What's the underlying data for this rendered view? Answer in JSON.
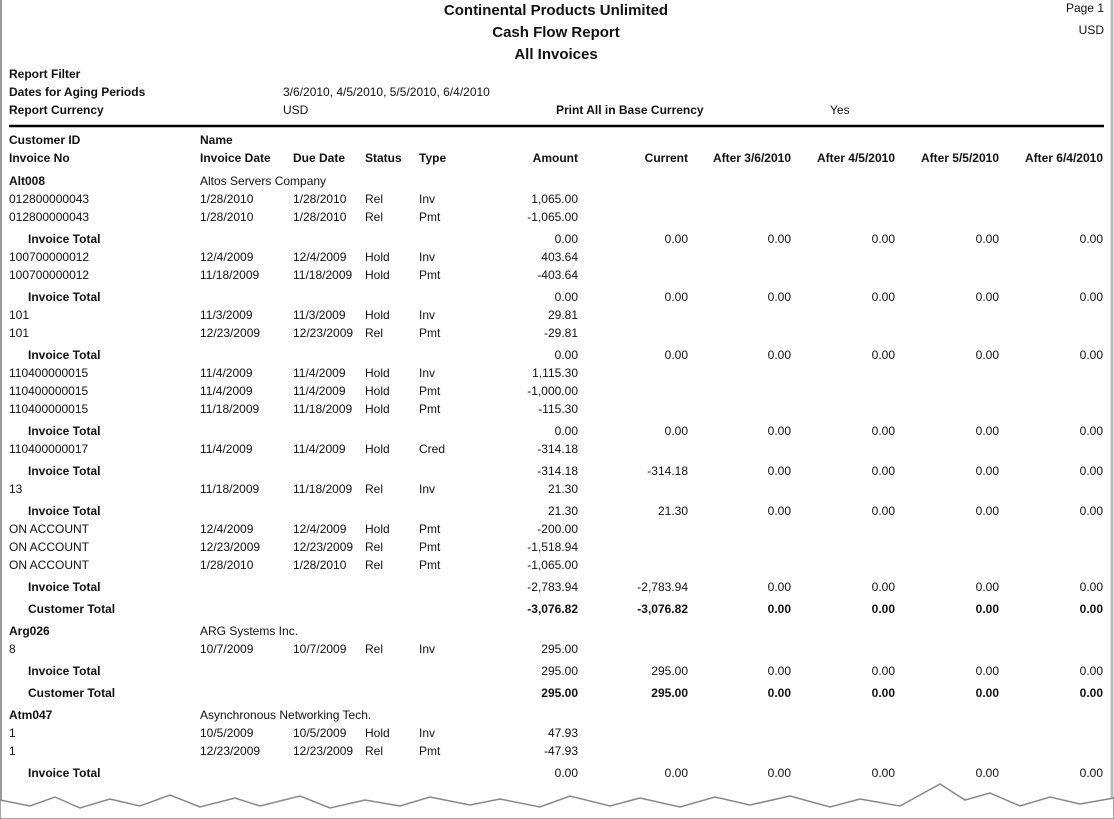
{
  "header": {
    "company": "Continental Products Unlimited",
    "title": "Cash Flow Report",
    "subtitle": "All Invoices",
    "page": "Page 1",
    "currency": "USD"
  },
  "filter": {
    "label": "Report Filter",
    "aging_label": "Dates for Aging Periods",
    "aging_value": "3/6/2010, 4/5/2010, 5/5/2010, 6/4/2010",
    "currency_label": "Report Currency",
    "currency_value": "USD",
    "base_label": "Print All in Base Currency",
    "base_value": "Yes"
  },
  "columns": {
    "row1": [
      "Customer ID",
      "Name"
    ],
    "row2": [
      "Invoice No",
      "Invoice Date",
      "Due Date",
      "Status",
      "Type",
      "Amount",
      "Current",
      "After 3/6/2010",
      "After 4/5/2010",
      "After 5/5/2010",
      "After 6/4/2010"
    ]
  },
  "customers": [
    {
      "id": "Alt008",
      "name": "Altos Servers Company",
      "invoices": [
        {
          "lines": [
            [
              "012800000043",
              "1/28/2010",
              "1/28/2010",
              "Rel",
              "Inv",
              "1,065.00"
            ],
            [
              "012800000043",
              "1/28/2010",
              "1/28/2010",
              "Rel",
              "Pmt",
              "-1,065.00"
            ]
          ],
          "total": {
            "label": "Invoice Total",
            "values": [
              "0.00",
              "0.00",
              "0.00",
              "0.00",
              "0.00",
              "0.00"
            ]
          }
        },
        {
          "lines": [
            [
              "100700000012",
              "12/4/2009",
              "12/4/2009",
              "Hold",
              "Inv",
              "403.64"
            ],
            [
              "100700000012",
              "11/18/2009",
              "11/18/2009",
              "Hold",
              "Pmt",
              "-403.64"
            ]
          ],
          "total": {
            "label": "Invoice Total",
            "values": [
              "0.00",
              "0.00",
              "0.00",
              "0.00",
              "0.00",
              "0.00"
            ]
          }
        },
        {
          "lines": [
            [
              "101",
              "11/3/2009",
              "11/3/2009",
              "Hold",
              "Inv",
              "29.81"
            ],
            [
              "101",
              "12/23/2009",
              "12/23/2009",
              "Rel",
              "Pmt",
              "-29.81"
            ]
          ],
          "total": {
            "label": "Invoice Total",
            "values": [
              "0.00",
              "0.00",
              "0.00",
              "0.00",
              "0.00",
              "0.00"
            ]
          }
        },
        {
          "lines": [
            [
              "110400000015",
              "11/4/2009",
              "11/4/2009",
              "Hold",
              "Inv",
              "1,115.30"
            ],
            [
              "110400000015",
              "11/4/2009",
              "11/4/2009",
              "Hold",
              "Pmt",
              "-1,000.00"
            ],
            [
              "110400000015",
              "11/18/2009",
              "11/18/2009",
              "Hold",
              "Pmt",
              "-115.30"
            ]
          ],
          "total": {
            "label": "Invoice Total",
            "values": [
              "0.00",
              "0.00",
              "0.00",
              "0.00",
              "0.00",
              "0.00"
            ]
          }
        },
        {
          "lines": [
            [
              "110400000017",
              "11/4/2009",
              "11/4/2009",
              "Hold",
              "Cred",
              "-314.18"
            ]
          ],
          "total": {
            "label": "Invoice Total",
            "values": [
              "-314.18",
              "-314.18",
              "0.00",
              "0.00",
              "0.00",
              "0.00"
            ]
          }
        },
        {
          "lines": [
            [
              "13",
              "11/18/2009",
              "11/18/2009",
              "Rel",
              "Inv",
              "21.30"
            ]
          ],
          "total": {
            "label": "Invoice Total",
            "values": [
              "21.30",
              "21.30",
              "0.00",
              "0.00",
              "0.00",
              "0.00"
            ]
          }
        },
        {
          "lines": [
            [
              "ON ACCOUNT",
              "12/4/2009",
              "12/4/2009",
              "Hold",
              "Pmt",
              "-200.00"
            ],
            [
              "ON ACCOUNT",
              "12/23/2009",
              "12/23/2009",
              "Rel",
              "Pmt",
              "-1,518.94"
            ],
            [
              "ON ACCOUNT",
              "1/28/2010",
              "1/28/2010",
              "Rel",
              "Pmt",
              "-1,065.00"
            ]
          ],
          "total": {
            "label": "Invoice Total",
            "values": [
              "-2,783.94",
              "-2,783.94",
              "0.00",
              "0.00",
              "0.00",
              "0.00"
            ]
          }
        }
      ],
      "total": {
        "label": "Customer Total",
        "values": [
          "-3,076.82",
          "-3,076.82",
          "0.00",
          "0.00",
          "0.00",
          "0.00"
        ]
      }
    },
    {
      "id": "Arg026",
      "name": "ARG Systems Inc.",
      "invoices": [
        {
          "lines": [
            [
              "8",
              "10/7/2009",
              "10/7/2009",
              "Rel",
              "Inv",
              "295.00"
            ]
          ],
          "total": {
            "label": "Invoice Total",
            "values": [
              "295.00",
              "295.00",
              "0.00",
              "0.00",
              "0.00",
              "0.00"
            ]
          }
        }
      ],
      "total": {
        "label": "Customer Total",
        "values": [
          "295.00",
          "295.00",
          "0.00",
          "0.00",
          "0.00",
          "0.00"
        ]
      }
    },
    {
      "id": "Atm047",
      "name": "Asynchronous Networking Tech.",
      "invoices": [
        {
          "lines": [
            [
              "1",
              "10/5/2009",
              "10/5/2009",
              "Hold",
              "Inv",
              "47.93"
            ],
            [
              "1",
              "12/23/2009",
              "12/23/2009",
              "Rel",
              "Pmt",
              "-47.93"
            ]
          ],
          "total": {
            "label": "Invoice Total",
            "values": [
              "0.00",
              "0.00",
              "0.00",
              "0.00",
              "0.00",
              "0.00"
            ]
          }
        }
      ]
    }
  ]
}
